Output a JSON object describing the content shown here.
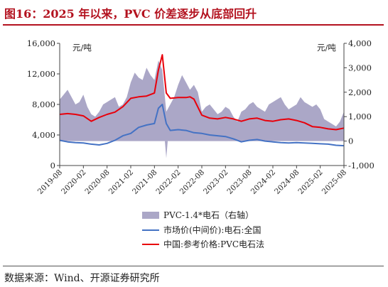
{
  "title": "图16：2025 年以来，PVC 价差逐步从底部回升",
  "source": "数据来源：Wind、开源证券研究所",
  "colors": {
    "title": "#b3121f",
    "spread": "#aba7c7",
    "market": "#4472c4",
    "reference": "#e8000b"
  },
  "chart_data": {
    "type": "line",
    "left_unit": "元/吨",
    "right_unit": "元/吨",
    "left_ticks": [
      "16,000",
      "12,000",
      "8,000",
      "4,000",
      "0"
    ],
    "right_ticks": [
      "4,000",
      "3,000",
      "2,000",
      "1,000",
      "0",
      "-1,000"
    ],
    "ylim_left": [
      0,
      16000
    ],
    "ylim_right": [
      -1000,
      4000
    ],
    "x_ticks": [
      "2019-08",
      "2020-02",
      "2020-08",
      "2021-02",
      "2021-08",
      "2022-02",
      "2022-08",
      "2023-02",
      "2023-08",
      "2024-02",
      "2024-08",
      "2025-02",
      "2025-08"
    ],
    "series": [
      {
        "name": "PVC-1.4*电石（右轴）",
        "axis": "right",
        "kind": "area",
        "x": [
          "2019-08",
          "2019-09",
          "2019-10",
          "2019-11",
          "2019-12",
          "2020-01",
          "2020-02",
          "2020-03",
          "2020-04",
          "2020-05",
          "2020-06",
          "2020-07",
          "2020-08",
          "2020-09",
          "2020-10",
          "2020-11",
          "2020-12",
          "2021-01",
          "2021-02",
          "2021-03",
          "2021-04",
          "2021-05",
          "2021-06",
          "2021-07",
          "2021-08",
          "2021-09",
          "2021-10",
          "2021-11",
          "2021-12",
          "2022-01",
          "2022-02",
          "2022-03",
          "2022-04",
          "2022-05",
          "2022-06",
          "2022-07",
          "2022-08",
          "2022-09",
          "2022-10",
          "2022-11",
          "2022-12",
          "2023-01",
          "2023-02",
          "2023-03",
          "2023-04",
          "2023-05",
          "2023-06",
          "2023-07",
          "2023-08",
          "2023-09",
          "2023-10",
          "2023-11",
          "2023-12",
          "2024-01",
          "2024-02",
          "2024-03",
          "2024-04",
          "2024-05",
          "2024-06",
          "2024-07",
          "2024-08",
          "2024-09",
          "2024-10",
          "2024-11",
          "2024-12",
          "2025-01",
          "2025-02",
          "2025-03",
          "2025-04",
          "2025-05",
          "2025-06",
          "2025-07",
          "2025-08"
        ],
        "values": [
          1700,
          1900,
          2100,
          1800,
          1500,
          1600,
          1900,
          1400,
          1100,
          1000,
          1200,
          1500,
          1600,
          1700,
          1800,
          1400,
          1500,
          1800,
          2400,
          2800,
          2600,
          2500,
          3000,
          2700,
          2500,
          3300,
          2900,
          1200,
          1500,
          1800,
          2300,
          2700,
          2400,
          2100,
          2300,
          2000,
          1200,
          1400,
          1500,
          1300,
          1100,
          1200,
          1400,
          1300,
          1000,
          800,
          1200,
          1300,
          1500,
          1600,
          1400,
          1300,
          1200,
          1500,
          1600,
          1700,
          1800,
          1500,
          1300,
          1400,
          1500,
          1800,
          1600,
          1500,
          1400,
          1500,
          1300,
          900,
          800,
          700,
          600,
          800,
          1200
        ]
      },
      {
        "name": "市场价(中间价):电石:全国",
        "axis": "left",
        "kind": "line",
        "x": [
          "2019-08",
          "2019-10",
          "2019-12",
          "2020-02",
          "2020-04",
          "2020-06",
          "2020-08",
          "2020-10",
          "2020-12",
          "2021-02",
          "2021-04",
          "2021-06",
          "2021-08",
          "2021-09",
          "2021-10",
          "2021-11",
          "2021-12",
          "2022-02",
          "2022-04",
          "2022-06",
          "2022-08",
          "2022-10",
          "2022-12",
          "2023-02",
          "2023-04",
          "2023-06",
          "2023-08",
          "2023-10",
          "2023-12",
          "2024-02",
          "2024-04",
          "2024-06",
          "2024-08",
          "2024-10",
          "2024-12",
          "2025-02",
          "2025-04",
          "2025-06",
          "2025-08"
        ],
        "values": [
          3300,
          3100,
          3000,
          2950,
          2800,
          2700,
          2900,
          3300,
          3900,
          4200,
          5000,
          5300,
          5500,
          7500,
          8000,
          5500,
          4600,
          4700,
          4600,
          4300,
          4200,
          4000,
          3900,
          3800,
          3500,
          3100,
          3300,
          3400,
          3200,
          3100,
          3000,
          2950,
          3000,
          2950,
          2900,
          2850,
          2800,
          2650,
          2600
        ]
      },
      {
        "name": "中国:参考价格:PVC电石法",
        "axis": "left",
        "kind": "line",
        "x": [
          "2019-08",
          "2019-10",
          "2019-12",
          "2020-02",
          "2020-04",
          "2020-06",
          "2020-08",
          "2020-10",
          "2020-12",
          "2021-02",
          "2021-04",
          "2021-06",
          "2021-08",
          "2021-09",
          "2021-10",
          "2021-11",
          "2021-12",
          "2022-02",
          "2022-04",
          "2022-05",
          "2022-06",
          "2022-08",
          "2022-10",
          "2022-12",
          "2023-02",
          "2023-04",
          "2023-06",
          "2023-08",
          "2023-10",
          "2023-12",
          "2024-02",
          "2024-04",
          "2024-06",
          "2024-08",
          "2024-10",
          "2024-12",
          "2025-02",
          "2025-04",
          "2025-06",
          "2025-08"
        ],
        "values": [
          6700,
          6800,
          6700,
          6500,
          5800,
          6300,
          6700,
          7000,
          7700,
          8800,
          9000,
          9100,
          9500,
          12500,
          14500,
          9500,
          8800,
          8900,
          8900,
          9000,
          8700,
          6600,
          6200,
          6100,
          6300,
          6100,
          5800,
          6100,
          6200,
          5900,
          5800,
          6000,
          6100,
          5900,
          5600,
          5100,
          5000,
          4800,
          4700,
          4900
        ]
      }
    ]
  }
}
